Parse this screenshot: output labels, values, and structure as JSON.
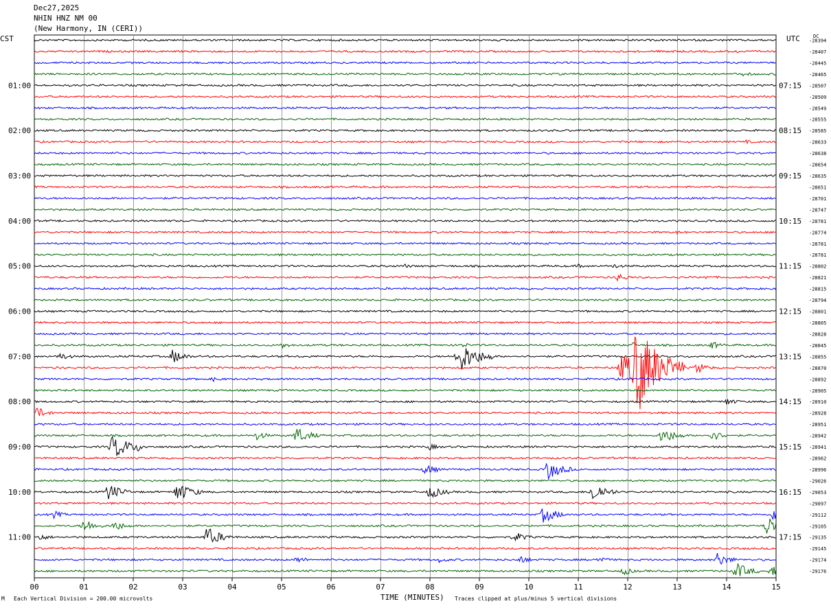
{
  "header": {
    "date": "Dec27,2025",
    "station": "NHIN HNZ NM 00",
    "location": "(New Harmony, IN (CERI))"
  },
  "labels": {
    "left_tz": "CST",
    "right_tz": "UTC",
    "dc": "DC",
    "xlabel": "TIME (MINUTES)",
    "scale_note": "Each Vertical Division =  200.00 microvolts",
    "clip_note": "Traces clipped at plus/minus 5 vertical divisions",
    "corner_mark": "M"
  },
  "chart_data": {
    "type": "line",
    "xlabel": "TIME (MINUTES)",
    "xlim": [
      0,
      15
    ],
    "x_ticks": [
      "00",
      "01",
      "02",
      "03",
      "04",
      "05",
      "06",
      "07",
      "08",
      "09",
      "10",
      "11",
      "12",
      "13",
      "14",
      "15"
    ],
    "trace_colors": [
      "#000000",
      "#ff0000",
      "#0000ff",
      "#006400"
    ],
    "left_time_labels": [
      "01:00",
      "02:00",
      "03:00",
      "04:00",
      "05:00",
      "06:00",
      "07:00",
      "08:00",
      "09:00",
      "10:00",
      "11:00"
    ],
    "right_time_labels": [
      "07:15",
      "08:15",
      "09:15",
      "10:15",
      "11:15",
      "12:15",
      "13:15",
      "14:15",
      "15:15",
      "16:15",
      "17:15"
    ],
    "dc_offsets": [
      "-28394",
      "-28407",
      "-28445",
      "-28465",
      "-28507",
      "-28509",
      "-28549",
      "-28555",
      "-28585",
      "-28633",
      "-28638",
      "-28654",
      "-28635",
      "-28651",
      "-28701",
      "-28747",
      "-28781",
      "-28774",
      "-28781",
      "-28781",
      "-28802",
      "-28821",
      "-28815",
      "-28794",
      "-28801",
      "-28805",
      "-28828",
      "-28845",
      "-28855",
      "-28870",
      "-28892",
      "-28905",
      "-28910",
      "-28928",
      "-28951",
      "-28942",
      "-28941",
      "-28962",
      "-28996",
      "-29026",
      "-29053",
      "-29097",
      "-29112",
      "-29105",
      "-29135",
      "-29145",
      "-29174",
      "-29176"
    ],
    "events": [
      {
        "trace": 1,
        "minute": 12.8,
        "amp": 2
      },
      {
        "trace": 1,
        "minute": 14.2,
        "amp": 1.5
      },
      {
        "trace": 3,
        "minute": 14.3,
        "amp": 3
      },
      {
        "trace": 9,
        "minute": 14.4,
        "amp": 1.5
      },
      {
        "trace": 17,
        "minute": 13.0,
        "amp": 1.5
      },
      {
        "trace": 20,
        "minute": 7.5,
        "amp": 2
      },
      {
        "trace": 20,
        "minute": 11.0,
        "amp": 2
      },
      {
        "trace": 20,
        "minute": 11.7,
        "amp": 3
      },
      {
        "trace": 21,
        "minute": 11.8,
        "amp": 6
      },
      {
        "trace": 21,
        "minute": 13.5,
        "amp": 3
      },
      {
        "trace": 27,
        "minute": 5.0,
        "amp": 4
      },
      {
        "trace": 27,
        "minute": 8.6,
        "amp": 4
      },
      {
        "trace": 27,
        "minute": 12.1,
        "amp": 3
      },
      {
        "trace": 27,
        "minute": 13.7,
        "amp": 5
      },
      {
        "trace": 28,
        "minute": 0.5,
        "amp": 6
      },
      {
        "trace": 28,
        "minute": 2.8,
        "amp": 10
      },
      {
        "trace": 28,
        "minute": 8.6,
        "amp": 22
      },
      {
        "trace": 29,
        "minute": 12.2,
        "amp": 60
      },
      {
        "trace": 29,
        "minute": 11.9,
        "amp": 20
      },
      {
        "trace": 29,
        "minute": 13.4,
        "amp": 8
      },
      {
        "trace": 30,
        "minute": 3.6,
        "amp": 3
      },
      {
        "trace": 32,
        "minute": 14.0,
        "amp": 5
      },
      {
        "trace": 33,
        "minute": 0.05,
        "amp": 8
      },
      {
        "trace": 35,
        "minute": 4.5,
        "amp": 6
      },
      {
        "trace": 35,
        "minute": 5.3,
        "amp": 12
      },
      {
        "trace": 35,
        "minute": 12.7,
        "amp": 12
      },
      {
        "trace": 35,
        "minute": 13.7,
        "amp": 8
      },
      {
        "trace": 36,
        "minute": 1.6,
        "amp": 18
      },
      {
        "trace": 36,
        "minute": 2.1,
        "amp": 3
      },
      {
        "trace": 36,
        "minute": 8.0,
        "amp": 4
      },
      {
        "trace": 38,
        "minute": 7.9,
        "amp": 8
      },
      {
        "trace": 38,
        "minute": 10.4,
        "amp": 14
      },
      {
        "trace": 40,
        "minute": 1.5,
        "amp": 12
      },
      {
        "trace": 40,
        "minute": 2.9,
        "amp": 14
      },
      {
        "trace": 40,
        "minute": 8.0,
        "amp": 10
      },
      {
        "trace": 40,
        "minute": 11.3,
        "amp": 14
      },
      {
        "trace": 42,
        "minute": 0.4,
        "amp": 5
      },
      {
        "trace": 42,
        "minute": 10.3,
        "amp": 12
      },
      {
        "trace": 42,
        "minute": 14.95,
        "amp": 8
      },
      {
        "trace": 43,
        "minute": 1.0,
        "amp": 10
      },
      {
        "trace": 43,
        "minute": 1.6,
        "amp": 8
      },
      {
        "trace": 43,
        "minute": 14.8,
        "amp": 14
      },
      {
        "trace": 44,
        "minute": 0.1,
        "amp": 5
      },
      {
        "trace": 44,
        "minute": 3.5,
        "amp": 14
      },
      {
        "trace": 44,
        "minute": 9.7,
        "amp": 8
      },
      {
        "trace": 46,
        "minute": 5.3,
        "amp": 5
      },
      {
        "trace": 46,
        "minute": 8.2,
        "amp": 4
      },
      {
        "trace": 46,
        "minute": 9.8,
        "amp": 6
      },
      {
        "trace": 46,
        "minute": 11.4,
        "amp": 5
      },
      {
        "trace": 46,
        "minute": 13.8,
        "amp": 10
      },
      {
        "trace": 47,
        "minute": 11.9,
        "amp": 6
      },
      {
        "trace": 47,
        "minute": 14.2,
        "amp": 12
      },
      {
        "trace": 47,
        "minute": 14.9,
        "amp": 8
      }
    ]
  }
}
